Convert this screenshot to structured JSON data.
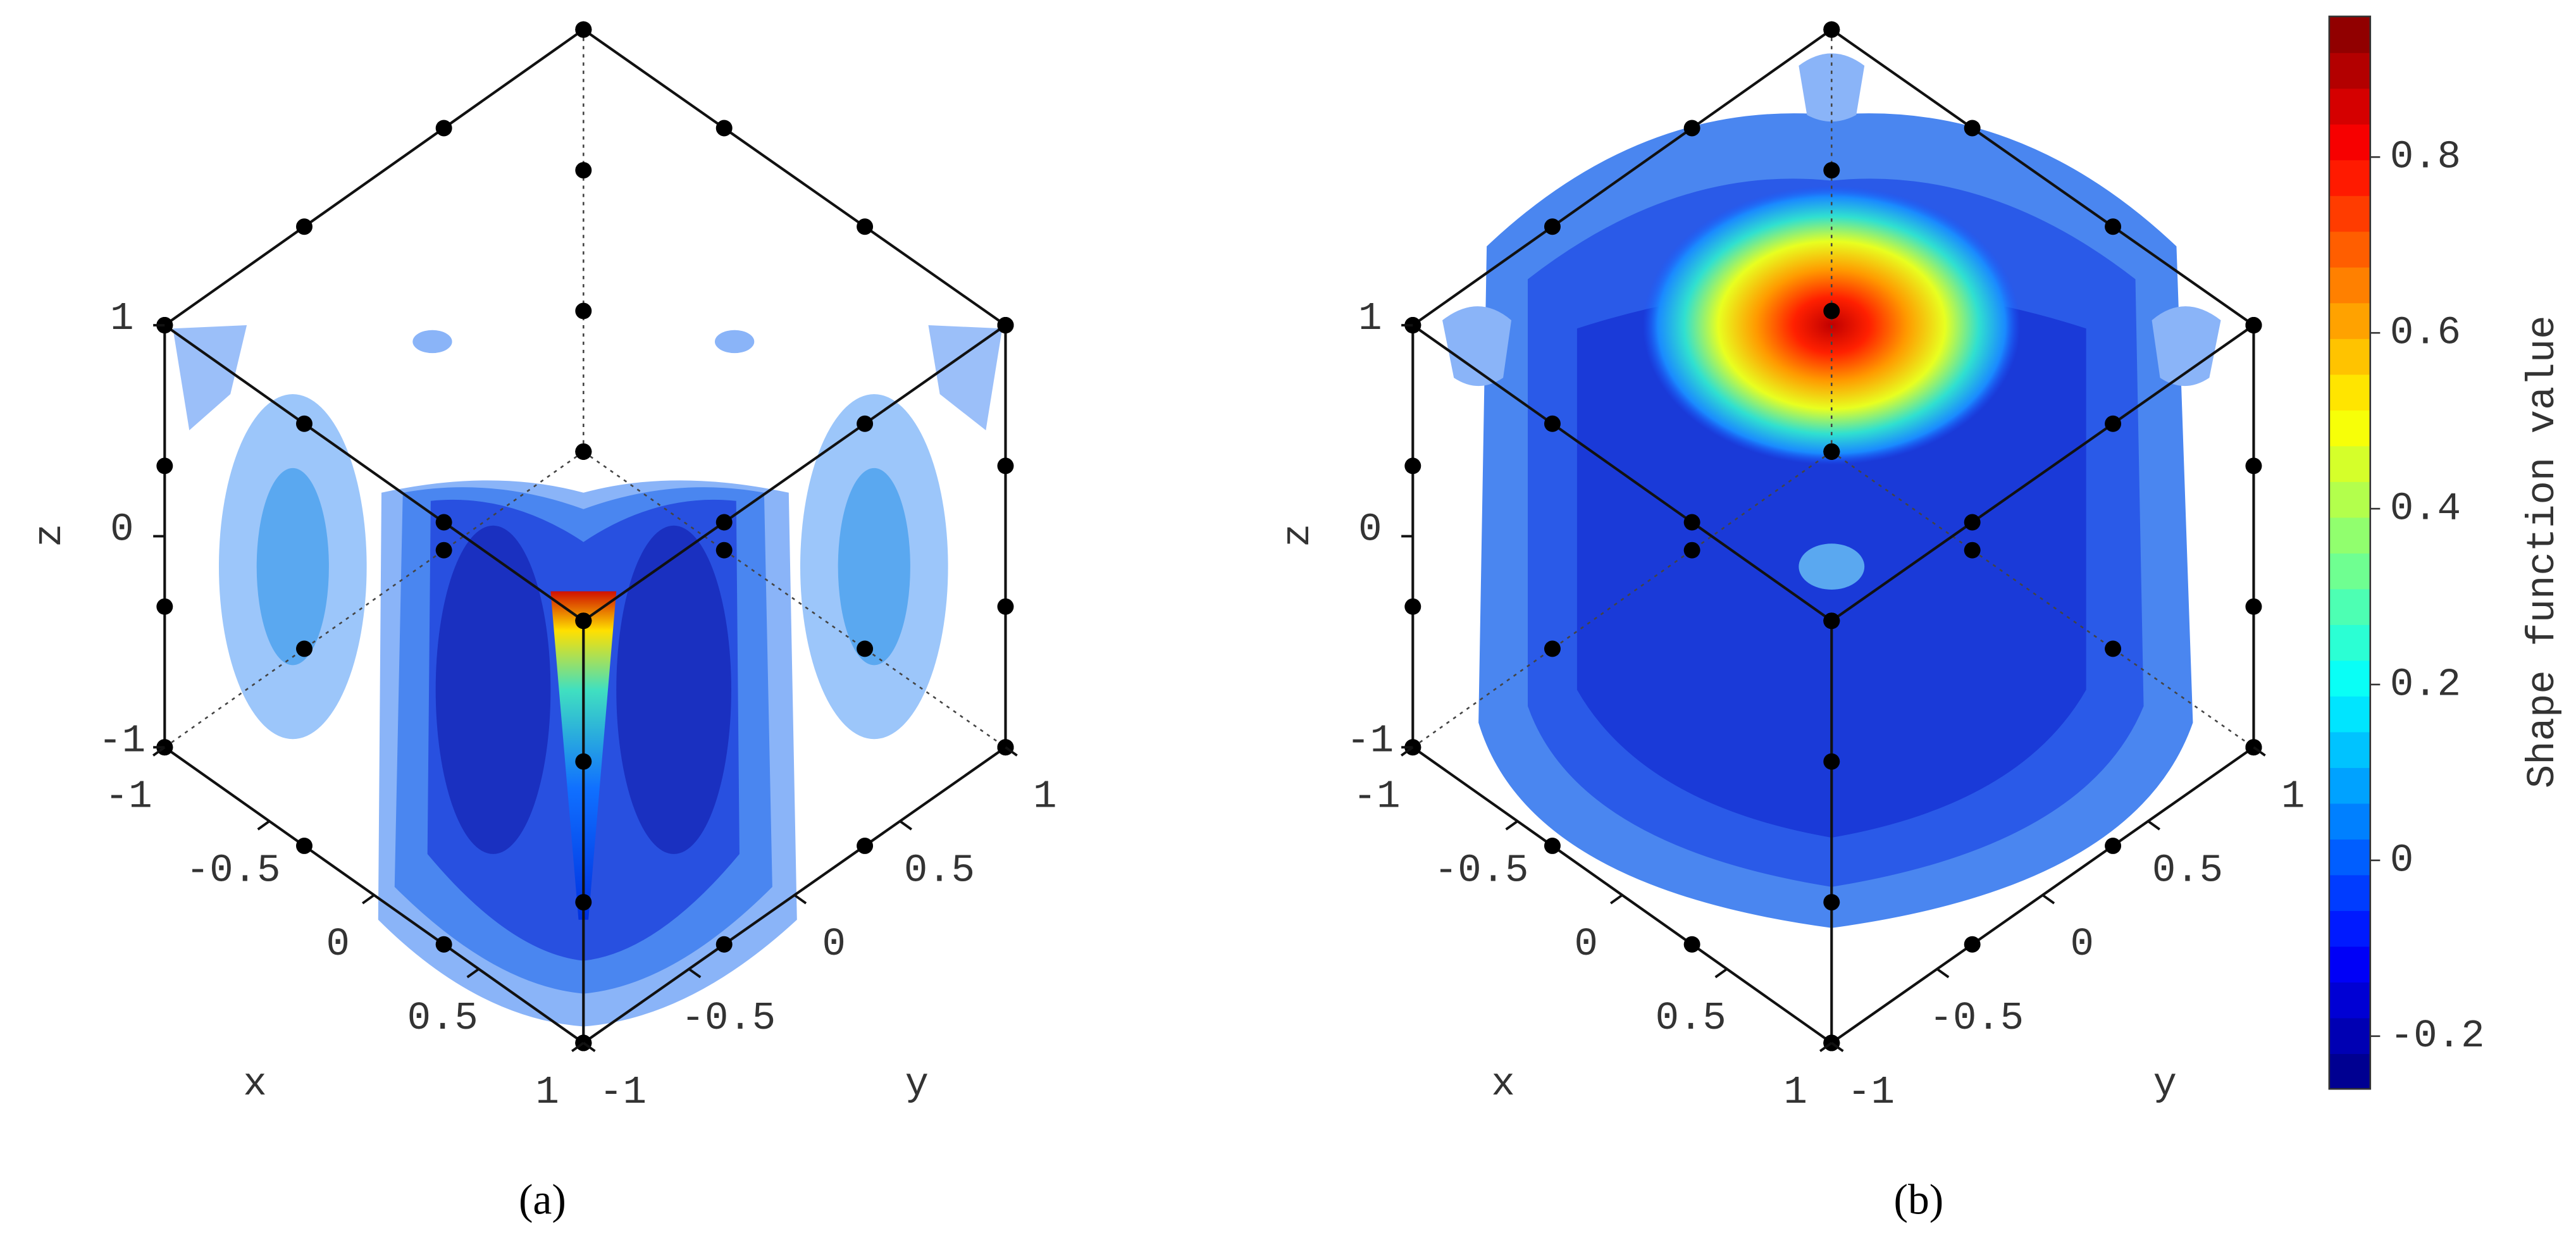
{
  "panels": [
    {
      "label": "(a)",
      "axes": {
        "x": {
          "title": "x",
          "ticks": [
            -1,
            -0.5,
            0,
            0.5,
            1
          ]
        },
        "y": {
          "title": "y",
          "ticks": [
            -1,
            -0.5,
            0,
            0.5,
            1
          ]
        },
        "z": {
          "title": "z",
          "ticks": [
            -1,
            0,
            1
          ]
        }
      }
    },
    {
      "label": "(b)",
      "axes": {
        "x": {
          "title": "x",
          "ticks": [
            -1,
            -0.5,
            0,
            0.5,
            1
          ]
        },
        "y": {
          "title": "y",
          "ticks": [
            -1,
            -0.5,
            0,
            0.5,
            1
          ]
        },
        "z": {
          "title": "z",
          "ticks": [
            -1,
            0,
            1
          ]
        }
      }
    }
  ],
  "colorbar": {
    "label": "Shape function value",
    "lim": [
      -0.26,
      0.96
    ],
    "ticks": [
      -0.2,
      0,
      0.2,
      0.4,
      0.6,
      0.8
    ]
  }
}
